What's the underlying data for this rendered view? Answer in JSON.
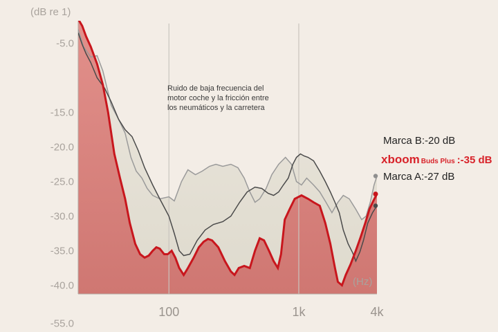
{
  "chart_data": {
    "type": "line",
    "title": "",
    "ylabel": "(dB re 1)",
    "xlabel": "(Hz)",
    "y_ticks": [
      "-5.0",
      "-15.0",
      "-20.0",
      "-25.0",
      "-30.0",
      "-35.0",
      "-40.0",
      "-55.0"
    ],
    "x_ticks": [
      {
        "label": "100",
        "hz": 100
      },
      {
        "label": "1k",
        "hz": 1000
      },
      {
        "label": "4k",
        "hz": 4000
      }
    ],
    "xlim": [
      20,
      4000
    ],
    "annotation": [
      "Ruido de baja frecuencia del",
      "motor coche y la fricción entre",
      "los neumáticos y la carretera"
    ],
    "series": [
      {
        "name": "Marca B",
        "label": "Marca B:-20 dB",
        "color": "#9a9a9a",
        "points": [
          [
            20,
            -3
          ],
          [
            22,
            -5.5
          ],
          [
            25,
            -7
          ],
          [
            28,
            -6.8
          ],
          [
            31,
            -9
          ],
          [
            36,
            -14
          ],
          [
            41,
            -16
          ],
          [
            46,
            -18
          ],
          [
            51,
            -21.5
          ],
          [
            56,
            -23.5
          ],
          [
            62,
            -24.5
          ],
          [
            68,
            -26
          ],
          [
            75,
            -27
          ],
          [
            85,
            -27.5
          ],
          [
            100,
            -27.2
          ],
          [
            110,
            -27.8
          ],
          [
            125,
            -25
          ],
          [
            140,
            -23.3
          ],
          [
            160,
            -24
          ],
          [
            180,
            -23.5
          ],
          [
            205,
            -22.8
          ],
          [
            230,
            -22.5
          ],
          [
            260,
            -22.8
          ],
          [
            300,
            -22.5
          ],
          [
            340,
            -23
          ],
          [
            380,
            -24.5
          ],
          [
            420,
            -26.5
          ],
          [
            460,
            -28
          ],
          [
            500,
            -27.5
          ],
          [
            560,
            -26
          ],
          [
            620,
            -24
          ],
          [
            700,
            -22.5
          ],
          [
            790,
            -21.5
          ],
          [
            880,
            -22.5
          ],
          [
            960,
            -25
          ],
          [
            1050,
            -25.5
          ],
          [
            1150,
            -24.5
          ],
          [
            1300,
            -25.5
          ],
          [
            1450,
            -26.5
          ],
          [
            1620,
            -28
          ],
          [
            1800,
            -29.5
          ],
          [
            2000,
            -28
          ],
          [
            2200,
            -27
          ],
          [
            2450,
            -27.5
          ],
          [
            2750,
            -29
          ],
          [
            3050,
            -30.5
          ],
          [
            3300,
            -30
          ],
          [
            3550,
            -28
          ],
          [
            3800,
            -25.5
          ],
          [
            4000,
            -24.2
          ]
        ]
      },
      {
        "name": "Marca A",
        "label": "Marca A:-27 dB",
        "color": "#4a4a4a",
        "points": [
          [
            20,
            -3.5
          ],
          [
            21.5,
            -5.2
          ],
          [
            23,
            -6.5
          ],
          [
            25,
            -7.8
          ],
          [
            28,
            -10
          ],
          [
            32,
            -11.5
          ],
          [
            36,
            -13.5
          ],
          [
            41,
            -16
          ],
          [
            46,
            -17.5
          ],
          [
            52,
            -18.5
          ],
          [
            58,
            -20.5
          ],
          [
            65,
            -23
          ],
          [
            75,
            -25.5
          ],
          [
            85,
            -27.5
          ],
          [
            100,
            -30
          ],
          [
            110,
            -32.5
          ],
          [
            120,
            -35
          ],
          [
            130,
            -35.7
          ],
          [
            145,
            -35.5
          ],
          [
            165,
            -33.5
          ],
          [
            190,
            -32
          ],
          [
            220,
            -31.2
          ],
          [
            260,
            -30.8
          ],
          [
            300,
            -30
          ],
          [
            350,
            -28
          ],
          [
            400,
            -26.5
          ],
          [
            460,
            -25.8
          ],
          [
            520,
            -26
          ],
          [
            580,
            -26.7
          ],
          [
            640,
            -27
          ],
          [
            700,
            -26.5
          ],
          [
            760,
            -25.5
          ],
          [
            830,
            -24.5
          ],
          [
            900,
            -22.5
          ],
          [
            960,
            -21.5
          ],
          [
            1030,
            -21
          ],
          [
            1100,
            -21.3
          ],
          [
            1180,
            -21.5
          ],
          [
            1300,
            -22
          ],
          [
            1450,
            -23.5
          ],
          [
            1600,
            -25
          ],
          [
            1750,
            -26.5
          ],
          [
            1900,
            -28
          ],
          [
            2050,
            -29.5
          ],
          [
            2200,
            -32
          ],
          [
            2400,
            -34
          ],
          [
            2600,
            -35.3
          ],
          [
            2750,
            -36.5
          ],
          [
            2950,
            -35.2
          ],
          [
            3150,
            -33.5
          ],
          [
            3400,
            -31
          ],
          [
            3700,
            -29.5
          ],
          [
            4000,
            -28.5
          ]
        ]
      },
      {
        "name": "xboom Buds Plus",
        "label": "-35 dB",
        "color": "#c8161d",
        "points": [
          [
            20,
            -1.5
          ],
          [
            21.5,
            -2.5
          ],
          [
            23,
            -4
          ],
          [
            25,
            -5.5
          ],
          [
            28,
            -8
          ],
          [
            31,
            -11
          ],
          [
            34,
            -15
          ],
          [
            38,
            -21
          ],
          [
            42,
            -24.5
          ],
          [
            46,
            -27.5
          ],
          [
            50,
            -31
          ],
          [
            55,
            -34
          ],
          [
            60,
            -35.5
          ],
          [
            65,
            -36
          ],
          [
            70,
            -35.7
          ],
          [
            75,
            -35
          ],
          [
            80,
            -34.5
          ],
          [
            85,
            -34.7
          ],
          [
            92,
            -35.5
          ],
          [
            98,
            -35.5
          ],
          [
            105,
            -35
          ],
          [
            112,
            -36
          ],
          [
            120,
            -37.5
          ],
          [
            130,
            -38.5
          ],
          [
            140,
            -37.5
          ],
          [
            155,
            -36
          ],
          [
            170,
            -34.5
          ],
          [
            185,
            -33.7
          ],
          [
            200,
            -33.3
          ],
          [
            215,
            -33.5
          ],
          [
            240,
            -34.5
          ],
          [
            270,
            -36.5
          ],
          [
            300,
            -38
          ],
          [
            320,
            -38.5
          ],
          [
            345,
            -37.5
          ],
          [
            380,
            -37.2
          ],
          [
            420,
            -37.5
          ],
          [
            460,
            -35
          ],
          [
            500,
            -33.2
          ],
          [
            540,
            -33.5
          ],
          [
            590,
            -35
          ],
          [
            640,
            -36.5
          ],
          [
            690,
            -37.5
          ],
          [
            730,
            -35.5
          ],
          [
            780,
            -30.5
          ],
          [
            850,
            -29
          ],
          [
            930,
            -27.5
          ],
          [
            1050,
            -27
          ],
          [
            1180,
            -27.5
          ],
          [
            1300,
            -28
          ],
          [
            1450,
            -28.5
          ],
          [
            1600,
            -31
          ],
          [
            1750,
            -34
          ],
          [
            1900,
            -37.5
          ],
          [
            2000,
            -39.5
          ],
          [
            2150,
            -40
          ],
          [
            2300,
            -38.5
          ],
          [
            2500,
            -37
          ],
          [
            2750,
            -35
          ],
          [
            3000,
            -33
          ],
          [
            3250,
            -31
          ],
          [
            3500,
            -29
          ],
          [
            3750,
            -27.8
          ],
          [
            4000,
            -26.8
          ]
        ]
      }
    ],
    "legend": {
      "marca_b": "Marca B:-20 dB",
      "brand_main": "xboom",
      "brand_sub": "Buds Plus",
      "brand_value": ":-35 dB",
      "marca_a": "Marca A:-27 dB"
    },
    "colors": {
      "background": "#f3ede6",
      "fill_upper": "#e7e2d8",
      "fill_red": "#dc8580",
      "gridline": "#c9c4be",
      "axis": "#a9a39d"
    }
  }
}
